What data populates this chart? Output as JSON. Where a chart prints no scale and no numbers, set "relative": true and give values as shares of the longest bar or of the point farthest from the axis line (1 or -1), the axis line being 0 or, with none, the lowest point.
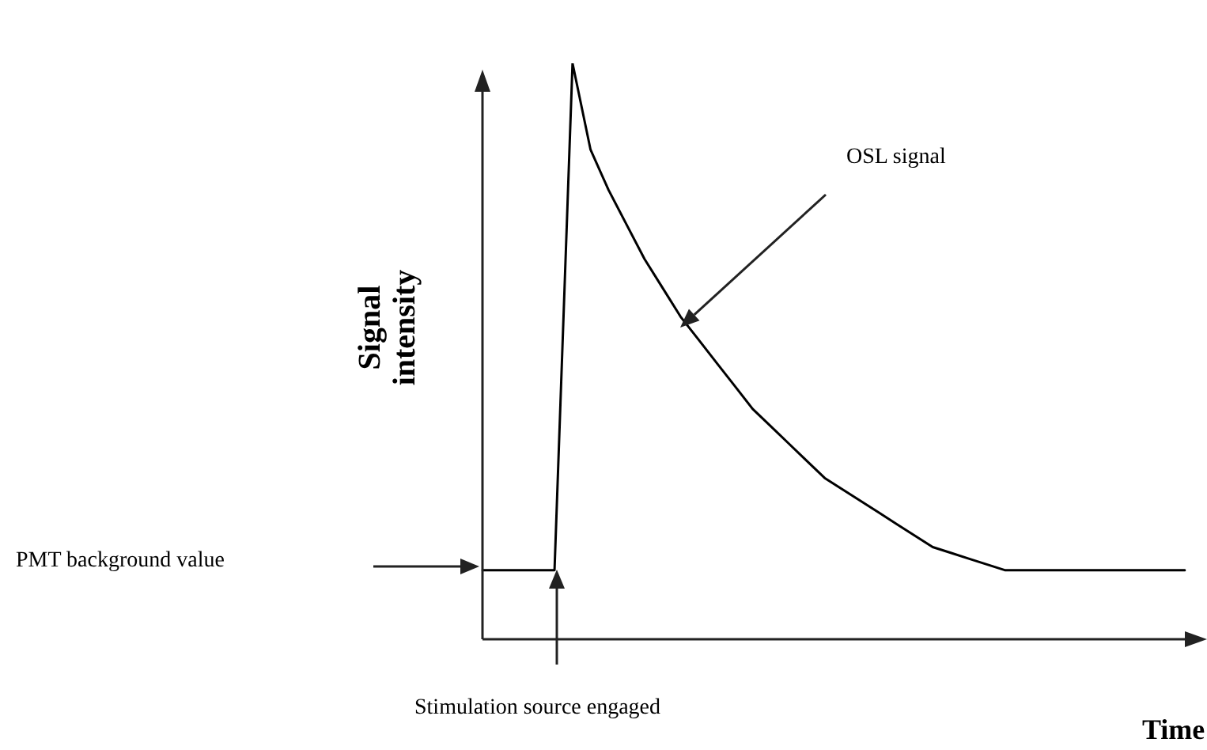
{
  "chart_data": {
    "type": "line",
    "relative": true,
    "xlabel": "Time",
    "ylabel": "Signal intensity",
    "annotations": [
      "OSL signal",
      "PMT background value",
      "Stimulation source engaged"
    ],
    "categories": [
      null,
      null,
      null,
      null,
      null,
      null,
      null,
      null,
      null,
      null,
      null,
      null,
      null,
      null,
      null,
      null,
      null,
      null,
      null,
      null,
      null,
      null,
      null,
      null,
      null,
      null,
      null,
      null,
      null,
      null,
      null,
      null,
      null,
      null,
      null,
      null,
      null,
      null,
      null,
      null
    ],
    "series": [
      {
        "color": "#000000",
        "values": [
          0.12,
          0.12,
          0.12,
          0.12,
          0.12,
          1,
          0.85,
          0.78,
          0.72,
          0.66,
          0.61,
          0.56,
          0.52,
          0.48,
          0.44,
          0.4,
          0.37,
          0.34,
          0.31,
          0.28,
          0.26,
          0.24,
          0.22,
          0.2,
          0.18,
          0.16,
          0.15,
          0.14,
          0.13,
          0.12,
          0.12,
          0.12,
          0.12,
          0.12,
          0.12,
          0.12,
          0.12,
          0.12,
          0.12,
          0.12
        ]
      }
    ]
  }
}
